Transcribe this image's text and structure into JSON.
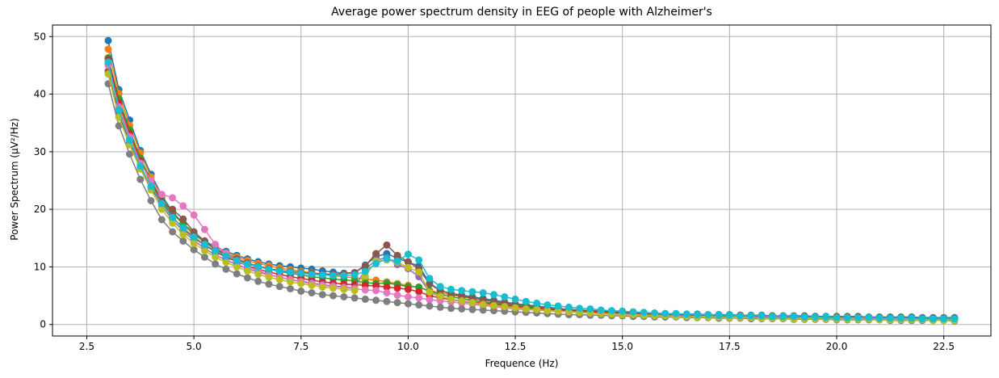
{
  "chart_data": {
    "type": "line",
    "title": "Average power spectrum density in EEG of people with Alzheimer's",
    "xlabel": "Frequence (Hz)",
    "ylabel": "Power Spectrum (μV²/Hz)",
    "xlim": [
      1.7,
      23.6
    ],
    "ylim": [
      -2,
      52
    ],
    "xticks": [
      2.5,
      5.0,
      7.5,
      10.0,
      12.5,
      15.0,
      17.5,
      20.0,
      22.5
    ],
    "yticks": [
      0,
      10,
      20,
      30,
      40,
      50
    ],
    "grid": true,
    "marker": "circle",
    "x_start": 3.0,
    "x_step": 0.25,
    "x_end": 22.75,
    "series": [
      {
        "color": "#1f77b4",
        "values": [
          49.3,
          40.8,
          35.5,
          30.2,
          26.1,
          22.4,
          19.6,
          17.5,
          15.9,
          14.5,
          13.5,
          12.7,
          12.0,
          11.4,
          10.9,
          10.5,
          10.2,
          10.0,
          9.8,
          9.6,
          9.3,
          9.1,
          8.9,
          9.0,
          10.3,
          11.8,
          12.3,
          11.5,
          10.8,
          10.2,
          7.2,
          5.9,
          5.4,
          5.1,
          4.8,
          4.5,
          4.2,
          3.9,
          3.6,
          3.4,
          3.2,
          3.0,
          2.8,
          2.6,
          2.5,
          2.4,
          2.3,
          2.2,
          2.1,
          2.0,
          2.0,
          1.9,
          1.9,
          1.8,
          1.8,
          1.8,
          1.7,
          1.7,
          1.7,
          1.6,
          1.6,
          1.6,
          1.5,
          1.5,
          1.5,
          1.5,
          1.4,
          1.4,
          1.4,
          1.4,
          1.4,
          1.3,
          1.3,
          1.3,
          1.3,
          1.3,
          1.2,
          1.2,
          1.2,
          1.2
        ]
      },
      {
        "color": "#ff7f0e",
        "values": [
          47.8,
          40.1,
          34.6,
          29.8,
          25.6,
          22.0,
          19.4,
          17.3,
          15.6,
          14.3,
          13.2,
          12.4,
          11.7,
          11.1,
          10.6,
          10.2,
          9.8,
          9.5,
          9.2,
          9.0,
          8.7,
          8.5,
          8.3,
          8.1,
          7.9,
          7.7,
          7.4,
          7.1,
          6.8,
          6.4,
          5.9,
          5.5,
          5.1,
          4.8,
          4.5,
          4.2,
          3.9,
          3.6,
          3.4,
          3.2,
          3.0,
          2.8,
          2.6,
          2.5,
          2.4,
          2.3,
          2.2,
          2.1,
          2.0,
          1.9,
          1.9,
          1.8,
          1.8,
          1.7,
          1.7,
          1.7,
          1.6,
          1.6,
          1.6,
          1.5,
          1.5,
          1.5,
          1.4,
          1.4,
          1.4,
          1.4,
          1.3,
          1.3,
          1.3,
          1.3,
          1.3,
          1.2,
          1.2,
          1.2,
          1.2,
          1.1,
          1.1,
          1.1,
          1.1,
          1.1
        ]
      },
      {
        "color": "#2ca02c",
        "values": [
          46.3,
          39.2,
          33.8,
          28.9,
          25.0,
          21.6,
          19.2,
          17.6,
          15.8,
          14.4,
          13.0,
          12.0,
          11.2,
          10.6,
          10.1,
          9.6,
          9.2,
          8.9,
          8.6,
          8.3,
          8.1,
          7.9,
          7.7,
          7.6,
          7.3,
          7.1,
          7.2,
          6.9,
          6.6,
          6.5,
          5.8,
          5.2,
          4.8,
          4.5,
          4.2,
          3.9,
          3.7,
          3.5,
          3.3,
          3.1,
          2.9,
          2.7,
          2.6,
          2.5,
          2.4,
          2.3,
          2.2,
          2.1,
          2.0,
          1.9,
          1.8,
          1.8,
          1.7,
          1.7,
          1.6,
          1.6,
          1.6,
          1.5,
          1.5,
          1.5,
          1.4,
          1.4,
          1.4,
          1.3,
          1.3,
          1.3,
          1.3,
          1.2,
          1.2,
          1.2,
          1.2,
          1.1,
          1.1,
          1.1,
          1.1,
          1.1,
          1.0,
          1.0,
          1.0,
          1.0
        ]
      },
      {
        "color": "#d62728",
        "values": [
          46.0,
          38.5,
          33.2,
          28.4,
          24.6,
          21.3,
          18.7,
          16.6,
          15.0,
          13.8,
          12.6,
          11.7,
          10.9,
          10.2,
          9.6,
          9.1,
          8.7,
          8.3,
          8.0,
          7.7,
          7.4,
          7.2,
          7.0,
          6.9,
          6.8,
          6.7,
          6.5,
          6.3,
          6.1,
          5.7,
          5.0,
          4.6,
          4.3,
          4.1,
          3.9,
          3.7,
          3.5,
          3.3,
          3.1,
          2.9,
          2.7,
          2.6,
          2.5,
          2.4,
          2.3,
          2.2,
          2.1,
          2.0,
          1.9,
          1.8,
          1.8,
          1.7,
          1.7,
          1.6,
          1.6,
          1.5,
          1.5,
          1.5,
          1.4,
          1.4,
          1.4,
          1.3,
          1.3,
          1.3,
          1.2,
          1.2,
          1.2,
          1.2,
          1.1,
          1.1,
          1.1,
          1.1,
          1.0,
          1.0,
          1.0,
          1.0,
          1.0,
          0.9,
          0.9,
          0.9
        ]
      },
      {
        "color": "#9467bd",
        "values": [
          45.2,
          37.6,
          32.3,
          27.6,
          23.9,
          20.6,
          18.2,
          16.2,
          14.6,
          13.2,
          12.1,
          11.2,
          10.4,
          9.7,
          9.1,
          8.6,
          8.2,
          7.8,
          7.5,
          7.2,
          6.9,
          6.7,
          6.5,
          6.3,
          9.6,
          11.2,
          11.6,
          10.4,
          9.7,
          8.3,
          5.6,
          4.8,
          4.3,
          4.0,
          3.7,
          3.4,
          3.2,
          3.0,
          2.8,
          2.7,
          2.5,
          2.4,
          2.3,
          2.2,
          2.1,
          2.0,
          1.9,
          1.8,
          1.8,
          1.7,
          1.6,
          1.6,
          1.5,
          1.5,
          1.4,
          1.4,
          1.4,
          1.3,
          1.3,
          1.3,
          1.2,
          1.2,
          1.2,
          1.1,
          1.1,
          1.1,
          1.1,
          1.0,
          1.0,
          1.0,
          1.0,
          0.9,
          0.9,
          0.9,
          0.9,
          0.9,
          0.8,
          0.8,
          0.8,
          0.8
        ]
      },
      {
        "color": "#8c564b",
        "values": [
          44.0,
          36.4,
          31.5,
          27.1,
          23.4,
          21.3,
          20.0,
          18.3,
          16.1,
          14.5,
          13.2,
          12.2,
          11.4,
          10.7,
          10.1,
          9.7,
          9.4,
          9.2,
          9.0,
          8.9,
          8.8,
          8.7,
          8.8,
          9.0,
          10.2,
          12.3,
          13.8,
          12.0,
          10.9,
          9.7,
          7.0,
          5.9,
          5.3,
          4.9,
          4.6,
          4.3,
          4.0,
          3.7,
          3.5,
          3.3,
          3.1,
          2.9,
          2.7,
          2.6,
          2.5,
          2.4,
          2.3,
          2.2,
          2.1,
          2.0,
          2.0,
          1.9,
          1.8,
          1.8,
          1.7,
          1.7,
          1.7,
          1.6,
          1.6,
          1.6,
          1.5,
          1.5,
          1.5,
          1.4,
          1.4,
          1.4,
          1.4,
          1.3,
          1.3,
          1.3,
          1.3,
          1.2,
          1.2,
          1.2,
          1.2,
          1.2,
          1.1,
          1.1,
          1.1,
          1.1
        ]
      },
      {
        "color": "#e377c2",
        "values": [
          45.0,
          37.8,
          32.6,
          28.0,
          25.0,
          22.6,
          22.0,
          20.6,
          19.0,
          16.5,
          13.9,
          12.3,
          11.1,
          10.1,
          9.3,
          8.7,
          8.2,
          7.8,
          7.4,
          7.1,
          6.8,
          6.6,
          6.4,
          6.2,
          6.0,
          5.9,
          5.5,
          5.1,
          4.8,
          4.6,
          4.3,
          4.1,
          3.9,
          3.7,
          3.5,
          3.3,
          3.1,
          2.9,
          2.7,
          2.6,
          2.5,
          2.4,
          2.3,
          2.2,
          2.1,
          2.0,
          1.9,
          1.8,
          1.8,
          1.7,
          1.6,
          1.6,
          1.5,
          1.5,
          1.4,
          1.4,
          1.4,
          1.3,
          1.3,
          1.3,
          1.2,
          1.2,
          1.2,
          1.1,
          1.1,
          1.1,
          1.1,
          1.0,
          1.0,
          1.0,
          1.0,
          0.9,
          0.9,
          0.9,
          0.9,
          0.9,
          0.8,
          0.8,
          0.8,
          0.8
        ]
      },
      {
        "color": "#7f7f7f",
        "values": [
          41.8,
          34.5,
          29.6,
          25.2,
          21.5,
          18.2,
          16.1,
          14.5,
          13.0,
          11.7,
          10.5,
          9.6,
          8.8,
          8.1,
          7.5,
          7.0,
          6.6,
          6.2,
          5.8,
          5.5,
          5.2,
          5.0,
          4.8,
          4.6,
          4.4,
          4.2,
          4.0,
          3.8,
          3.6,
          3.4,
          3.2,
          3.0,
          2.8,
          2.7,
          2.6,
          2.5,
          2.4,
          2.3,
          2.2,
          2.1,
          2.0,
          1.9,
          1.8,
          1.7,
          1.7,
          1.6,
          1.6,
          1.5,
          1.5,
          1.4,
          1.4,
          1.3,
          1.3,
          1.3,
          1.2,
          1.2,
          1.2,
          1.1,
          1.1,
          1.1,
          1.0,
          1.0,
          1.0,
          1.0,
          0.9,
          0.9,
          0.9,
          0.9,
          0.8,
          0.8,
          0.8,
          0.8,
          0.8,
          0.7,
          0.7,
          0.7,
          0.7,
          0.7,
          0.7,
          0.6
        ]
      },
      {
        "color": "#bcbd22",
        "values": [
          43.5,
          36.0,
          31.2,
          27.0,
          23.4,
          20.0,
          17.6,
          15.6,
          14.1,
          12.8,
          11.7,
          10.8,
          10.0,
          9.3,
          8.7,
          8.2,
          7.8,
          7.4,
          7.1,
          6.8,
          6.5,
          6.3,
          6.1,
          5.9,
          8.4,
          11.0,
          11.2,
          10.8,
          9.9,
          9.1,
          5.6,
          4.9,
          4.4,
          4.1,
          3.8,
          3.5,
          3.3,
          3.1,
          2.9,
          2.7,
          2.6,
          2.4,
          2.3,
          2.2,
          2.1,
          2.0,
          1.9,
          1.8,
          1.7,
          1.7,
          1.6,
          1.5,
          1.5,
          1.4,
          1.4,
          1.3,
          1.3,
          1.3,
          1.2,
          1.2,
          1.2,
          1.1,
          1.1,
          1.1,
          1.0,
          1.0,
          1.0,
          1.0,
          0.9,
          0.9,
          0.9,
          0.9,
          0.8,
          0.8,
          0.8,
          0.8,
          0.8,
          0.7,
          0.7,
          0.7
        ]
      },
      {
        "color": "#17becf",
        "values": [
          45.6,
          37.2,
          32.0,
          27.5,
          24.0,
          21.0,
          18.6,
          16.8,
          15.2,
          13.9,
          12.8,
          11.9,
          11.1,
          10.5,
          10.0,
          9.6,
          9.3,
          9.1,
          8.9,
          8.7,
          8.6,
          8.5,
          8.5,
          8.6,
          9.2,
          10.6,
          11.4,
          11.0,
          12.2,
          11.2,
          8.0,
          6.6,
          6.1,
          5.9,
          5.7,
          5.5,
          5.2,
          4.8,
          4.4,
          4.0,
          3.7,
          3.4,
          3.2,
          3.0,
          2.8,
          2.7,
          2.5,
          2.4,
          2.3,
          2.2,
          2.1,
          2.0,
          1.9,
          1.9,
          1.8,
          1.7,
          1.7,
          1.6,
          1.6,
          1.5,
          1.5,
          1.5,
          1.4,
          1.4,
          1.4,
          1.3,
          1.3,
          1.3,
          1.2,
          1.2,
          1.2,
          1.2,
          1.1,
          1.1,
          1.1,
          1.1,
          1.0,
          1.0,
          1.0,
          1.0
        ]
      }
    ]
  }
}
